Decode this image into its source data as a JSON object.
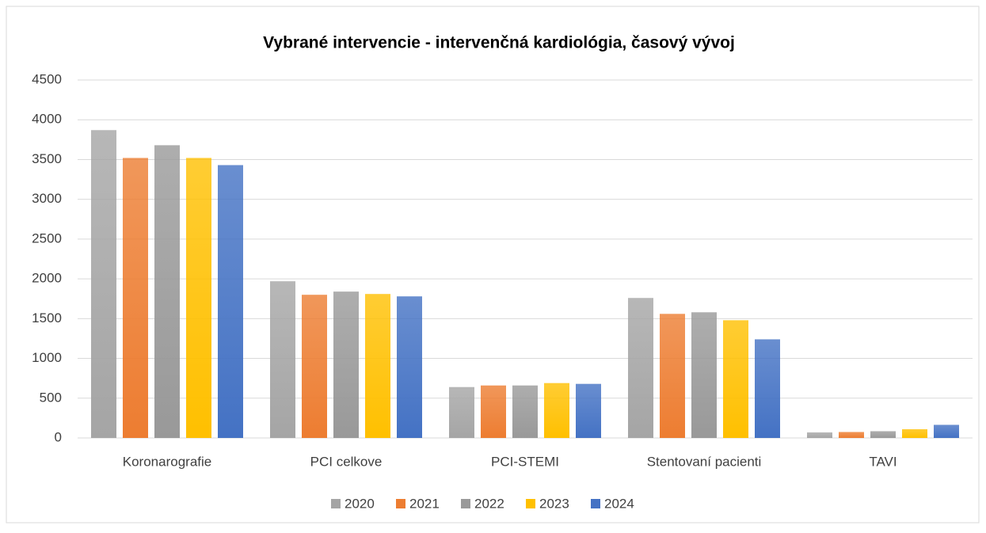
{
  "chart_data": {
    "type": "bar",
    "title": "Vybrané intervencie - intervenčná kardiológia, časový vývoj",
    "categories": [
      "Koronarografie",
      "PCI celkove",
      "PCI-STEMI",
      "Stentovaní pacienti",
      "TAVI"
    ],
    "series": [
      {
        "name": "2020",
        "color": "#a5a5a5",
        "values": [
          3870,
          1970,
          640,
          1760,
          70
        ]
      },
      {
        "name": "2021",
        "color": "#ed7d31",
        "values": [
          3520,
          1800,
          660,
          1560,
          75
        ]
      },
      {
        "name": "2022",
        "color": "#999999",
        "values": [
          3680,
          1840,
          660,
          1580,
          85
        ]
      },
      {
        "name": "2023",
        "color": "#ffc000",
        "values": [
          3520,
          1810,
          690,
          1480,
          110
        ]
      },
      {
        "name": "2024",
        "color": "#4472c4",
        "values": [
          3430,
          1780,
          680,
          1240,
          165
        ]
      }
    ],
    "ylim": [
      0,
      4500
    ],
    "yticks": [
      0,
      500,
      1000,
      1500,
      2000,
      2500,
      3000,
      3500,
      4000,
      4500
    ],
    "grid": true,
    "legend": "bottom"
  }
}
